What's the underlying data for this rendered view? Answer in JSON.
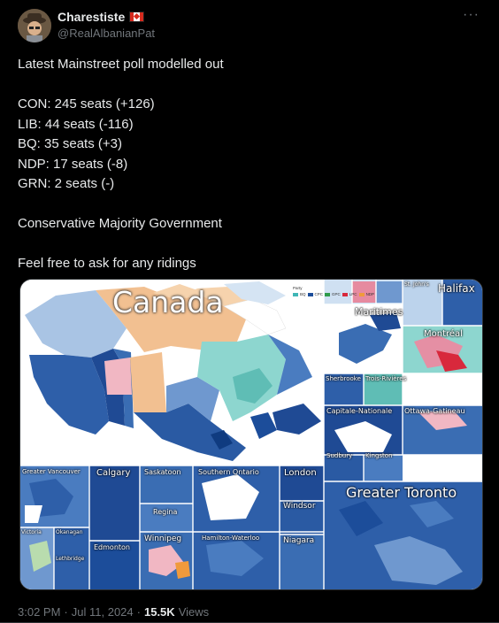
{
  "user": {
    "display_name": "Charestiste",
    "handle": "@RealAlbanianPat"
  },
  "tweet": {
    "lines": [
      "Latest Mainstreet poll modelled out",
      "",
      "CON: 245 seats (+126)",
      "LIB: 44 seats (-116)",
      "BQ: 35 seats (+3)",
      "NDP: 17 seats (-8)",
      "GRN: 2 seats (-)",
      "",
      "Conservative Majority Government",
      "",
      "Feel free to ask for any ridings"
    ]
  },
  "map": {
    "title": "Canada",
    "legend_title": "Party",
    "legend": [
      {
        "label": "BQ",
        "color": "#3fb6b6"
      },
      {
        "label": "CPC",
        "color": "#1c4d9a"
      },
      {
        "label": "GPC",
        "color": "#2e9b4a"
      },
      {
        "label": "LPC",
        "color": "#d8283c"
      },
      {
        "label": "NDP",
        "color": "#f09a3c"
      }
    ],
    "panels": {
      "maritimes": "Maritimes",
      "halifax": "Halifax",
      "st_johns": "St. John's",
      "montreal": "Montréal",
      "sherbrooke": "Sherbrooke",
      "trois_rivieres": "Trois-Rivières",
      "capitale_nationale": "Capitale-Nationale",
      "ottawa_gatineau": "Ottawa-Gatineau",
      "sudbury": "Sudbury",
      "kingston": "Kingston",
      "greater_toronto": "Greater Toronto",
      "greater_vancouver": "Greater Vancouver",
      "calgary": "Calgary",
      "saskatoon": "Saskatoon",
      "southern_ontario": "Southern Ontario",
      "london": "London",
      "regina": "Regina",
      "windsor": "Windsor",
      "victoria": "Victoria",
      "okanagan": "Okanagan",
      "edmonton": "Edmonton",
      "winnipeg": "Winnipeg",
      "hamilton_waterloo": "Hamilton-Waterloo",
      "niagara": "Niagara",
      "lethbridge": "Lethbridge"
    }
  },
  "meta": {
    "time": "3:02 PM",
    "dot1": "·",
    "date": "Jul 11, 2024",
    "dot2": "·",
    "views_count": "15.5K",
    "views_label": "Views"
  },
  "colors": {
    "background": "#000000",
    "text": "#e7e9ea",
    "secondary": "#71767b",
    "cpc": "#1c4d9a",
    "lpc": "#d8283c",
    "bq": "#3fb6b6",
    "ndp": "#f09a3c",
    "gpc": "#2e9b4a"
  }
}
